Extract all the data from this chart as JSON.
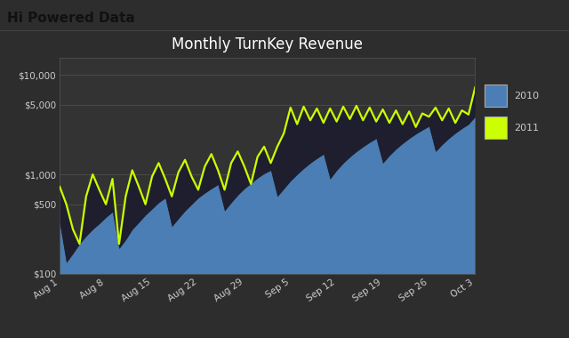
{
  "title": "Monthly TurnKey Revenue",
  "header_text": "Hi Powered Data",
  "legend_labels": [
    "2010",
    "2011"
  ],
  "x_labels": [
    "Aug 1",
    "Aug 8",
    "Aug 15",
    "Aug 22",
    "Aug 29",
    "Sep 5",
    "Sep 12",
    "Sep 19",
    "Sep 26",
    "Oct 3"
  ],
  "x_positions": [
    0,
    7,
    14,
    21,
    28,
    35,
    42,
    49,
    56,
    63
  ],
  "series_2010": [
    320,
    130,
    160,
    200,
    240,
    280,
    320,
    370,
    420,
    180,
    220,
    280,
    330,
    390,
    450,
    520,
    580,
    300,
    360,
    430,
    500,
    580,
    650,
    720,
    790,
    430,
    520,
    620,
    720,
    820,
    920,
    1020,
    1100,
    600,
    720,
    860,
    1000,
    1150,
    1300,
    1450,
    1600,
    900,
    1100,
    1300,
    1500,
    1700,
    1900,
    2100,
    2300,
    1300,
    1550,
    1800,
    2050,
    2300,
    2550,
    2800,
    3050,
    1700,
    2000,
    2300,
    2600,
    2900,
    3200,
    3800
  ],
  "series_2011": [
    750,
    500,
    280,
    200,
    600,
    1000,
    700,
    500,
    900,
    200,
    600,
    1100,
    750,
    500,
    950,
    1300,
    900,
    600,
    1050,
    1400,
    950,
    700,
    1200,
    1600,
    1100,
    700,
    1300,
    1700,
    1200,
    800,
    1500,
    1900,
    1300,
    1900,
    2600,
    4700,
    3200,
    4800,
    3500,
    4600,
    3300,
    4600,
    3400,
    4800,
    3600,
    4900,
    3500,
    4700,
    3400,
    4500,
    3300,
    4400,
    3200,
    4300,
    3000,
    4100,
    3800,
    4700,
    3500,
    4600,
    3300,
    4400,
    4000,
    7500
  ],
  "bg_color": "#2d2d2d",
  "plot_bg_color": "#333333",
  "header_bg_color": "#d0d0d0",
  "header_text_color": "#111111",
  "grid_color": "#4a4a4a",
  "title_color": "#ffffff",
  "tick_color": "#cccccc",
  "fill_2010_color": "#4a7eb5",
  "fill_between_color": "#1e1e2e",
  "line_2011_color": "#ccff00",
  "ylim_log": [
    100,
    15000
  ],
  "yticks": [
    100,
    500,
    1000,
    5000,
    10000
  ],
  "ytick_labels": [
    "$100",
    "$500",
    "$1,000",
    "$5,000",
    "$10,000"
  ]
}
